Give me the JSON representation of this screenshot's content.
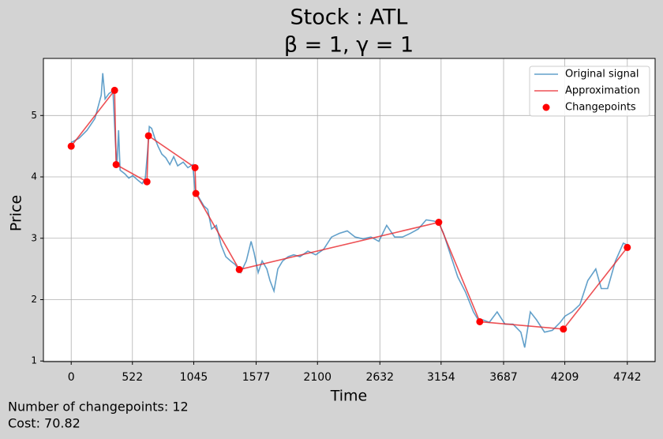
{
  "chart_data": {
    "type": "line",
    "title": "Stock : ATL",
    "subtitle": "β = 1, γ = 1",
    "x_label": "Time",
    "y_label": "Price",
    "annotations": [
      "Number of changepoints: 12",
      "Cost: 70.82"
    ],
    "xlim": [
      -237,
      4979
    ],
    "ylim": [
      0.99,
      5.93
    ],
    "xticks": [
      0,
      522,
      1045,
      1577,
      2100,
      2632,
      3154,
      3687,
      4209,
      4742
    ],
    "yticks": [
      1,
      2,
      3,
      4,
      5
    ],
    "grid": true,
    "legend": "upper right",
    "series": [
      {
        "name": "Original signal",
        "type": "line",
        "color": "#1f77b4",
        "opacity": 0.7,
        "x": [
          0,
          67,
          135,
          202,
          256,
          269,
          289,
          323,
          356,
          377,
          390,
          404,
          417,
          457,
          491,
          525,
          572,
          605,
          632,
          652,
          666,
          686,
          713,
          740,
          773,
          807,
          841,
          874,
          908,
          955,
          995,
          1036,
          1056,
          1090,
          1130,
          1164,
          1197,
          1238,
          1278,
          1318,
          1359,
          1399,
          1446,
          1493,
          1534,
          1560,
          1594,
          1628,
          1668,
          1695,
          1729,
          1762,
          1803,
          1850,
          1897,
          1951,
          2018,
          2085,
          2152,
          2220,
          2287,
          2354,
          2421,
          2489,
          2556,
          2623,
          2690,
          2758,
          2825,
          2892,
          2959,
          3027,
          3094,
          3134,
          3175,
          3229,
          3296,
          3363,
          3430,
          3471,
          3511,
          3565,
          3632,
          3699,
          3767,
          3834,
          3867,
          3915,
          3968,
          4036,
          4103,
          4170,
          4210,
          4271,
          4338,
          4405,
          4473,
          4520,
          4574,
          4641,
          4708,
          4742
        ],
        "values": [
          4.56,
          4.63,
          4.76,
          4.95,
          5.33,
          5.69,
          5.27,
          5.36,
          5.4,
          4.56,
          4.18,
          4.76,
          4.11,
          4.05,
          3.98,
          4.02,
          3.94,
          3.89,
          3.98,
          4.43,
          4.82,
          4.79,
          4.63,
          4.5,
          4.37,
          4.31,
          4.2,
          4.33,
          4.18,
          4.24,
          4.15,
          4.2,
          3.79,
          3.66,
          3.53,
          3.47,
          3.15,
          3.21,
          2.89,
          2.7,
          2.63,
          2.57,
          2.44,
          2.63,
          2.95,
          2.76,
          2.44,
          2.63,
          2.5,
          2.31,
          2.14,
          2.5,
          2.63,
          2.7,
          2.73,
          2.7,
          2.79,
          2.73,
          2.82,
          3.02,
          3.08,
          3.12,
          3.02,
          2.99,
          3.02,
          2.95,
          3.21,
          3.02,
          3.02,
          3.08,
          3.15,
          3.3,
          3.28,
          3.25,
          3.08,
          2.76,
          2.37,
          2.12,
          1.8,
          1.67,
          1.67,
          1.63,
          1.8,
          1.6,
          1.6,
          1.47,
          1.22,
          1.8,
          1.67,
          1.47,
          1.5,
          1.63,
          1.73,
          1.8,
          1.92,
          2.31,
          2.5,
          2.18,
          2.18,
          2.63,
          2.92,
          2.89
        ]
      },
      {
        "name": "Approximation",
        "type": "line",
        "color": "#e8262b",
        "opacity": 0.8,
        "x": [
          0,
          370,
          383,
          646,
          659,
          1056,
          1063,
          1433,
          3134,
          3484,
          4197,
          4742
        ],
        "values": [
          4.5,
          5.41,
          4.2,
          3.92,
          4.67,
          4.15,
          3.73,
          2.49,
          3.26,
          1.64,
          1.52,
          2.85
        ]
      },
      {
        "name": "Changepoints",
        "type": "scatter",
        "color": "#ff0000",
        "opacity": 1,
        "x": [
          0,
          370,
          383,
          646,
          659,
          1056,
          1063,
          1433,
          3134,
          3484,
          4197,
          4742
        ],
        "values": [
          4.5,
          5.41,
          4.2,
          3.92,
          4.67,
          4.15,
          3.73,
          2.49,
          3.26,
          1.64,
          1.52,
          2.85
        ]
      }
    ]
  }
}
